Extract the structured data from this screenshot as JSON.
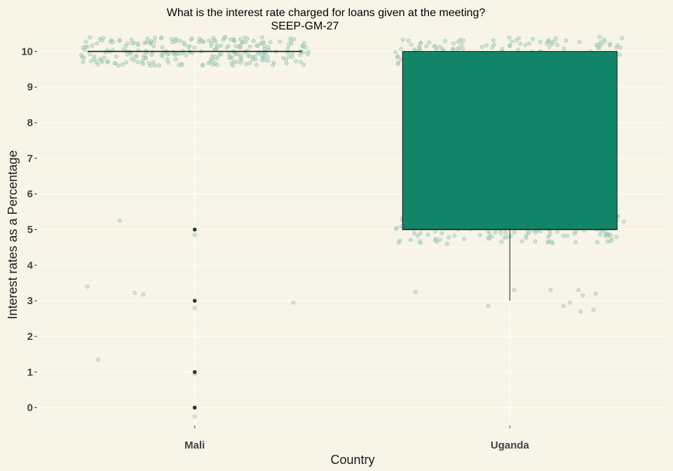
{
  "chart_data": {
    "type": "box",
    "title": "What is the interest rate charged for loans given at the meeting?",
    "subtitle": "SEEP-GM-27",
    "xlabel": "Country",
    "ylabel": "Interest rates as a Percentage",
    "categories": [
      "Mali",
      "Uganda"
    ],
    "y_ticks": [
      0,
      1,
      2,
      3,
      4,
      5,
      6,
      7,
      8,
      9,
      10
    ],
    "ylim": [
      -0.5,
      10.5
    ],
    "grid": true,
    "legend": "none",
    "boxes": [
      {
        "category": "Mali",
        "min": 10,
        "q1": 10,
        "median": 10,
        "q3": 10,
        "max": 10,
        "outliers": [
          5,
          3,
          1,
          0
        ]
      },
      {
        "category": "Uganda",
        "min": 3,
        "q1": 5,
        "median": 5,
        "q3": 10,
        "max": 10,
        "outliers": []
      }
    ],
    "jitter_clusters": [
      {
        "category": "Mali",
        "value": 10,
        "count": 260
      },
      {
        "category": "Uganda",
        "value": 10,
        "count": 160
      },
      {
        "category": "Uganda",
        "value": 5,
        "count": 150
      }
    ],
    "jitter_points": [
      {
        "category": "Mali",
        "x_offset": -0.35,
        "y": 5.25
      },
      {
        "category": "Mali",
        "x_offset": -0.5,
        "y": 3.4
      },
      {
        "category": "Mali",
        "x_offset": -0.28,
        "y": 3.22
      },
      {
        "category": "Mali",
        "x_offset": -0.24,
        "y": 3.18
      },
      {
        "category": "Mali",
        "x_offset": -0.45,
        "y": 1.35
      },
      {
        "category": "Mali",
        "x_offset": 0.0,
        "y": 4.85
      },
      {
        "category": "Mali",
        "x_offset": 0.0,
        "y": 2.8
      },
      {
        "category": "Mali",
        "x_offset": 0.0,
        "y": 0.95
      },
      {
        "category": "Mali",
        "x_offset": 0.0,
        "y": -0.25
      },
      {
        "category": "Mali",
        "x_offset": 0.46,
        "y": 2.95
      },
      {
        "category": "Uganda",
        "x_offset": -0.44,
        "y": 3.25
      },
      {
        "category": "Uganda",
        "x_offset": -0.1,
        "y": 2.85
      },
      {
        "category": "Uganda",
        "x_offset": 0.02,
        "y": 3.3
      },
      {
        "category": "Uganda",
        "x_offset": 0.19,
        "y": 3.3
      },
      {
        "category": "Uganda",
        "x_offset": 0.25,
        "y": 2.85
      },
      {
        "category": "Uganda",
        "x_offset": 0.28,
        "y": 2.95
      },
      {
        "category": "Uganda",
        "x_offset": 0.32,
        "y": 3.3
      },
      {
        "category": "Uganda",
        "x_offset": 0.34,
        "y": 3.15
      },
      {
        "category": "Uganda",
        "x_offset": 0.33,
        "y": 2.7
      },
      {
        "category": "Uganda",
        "x_offset": 0.39,
        "y": 2.75
      },
      {
        "category": "Uganda",
        "x_offset": 0.4,
        "y": 3.2
      },
      {
        "category": "Uganda",
        "x_offset": 0.05,
        "y": 7.75
      }
    ],
    "colors": {
      "background": "#f8f4e8",
      "grid": "#ffffff",
      "box_fill": "#128568",
      "box_line": "#1a1a1a",
      "point": "#a9cfbf",
      "point_edge": "#8fbfa9",
      "outlier": "#333333"
    }
  }
}
